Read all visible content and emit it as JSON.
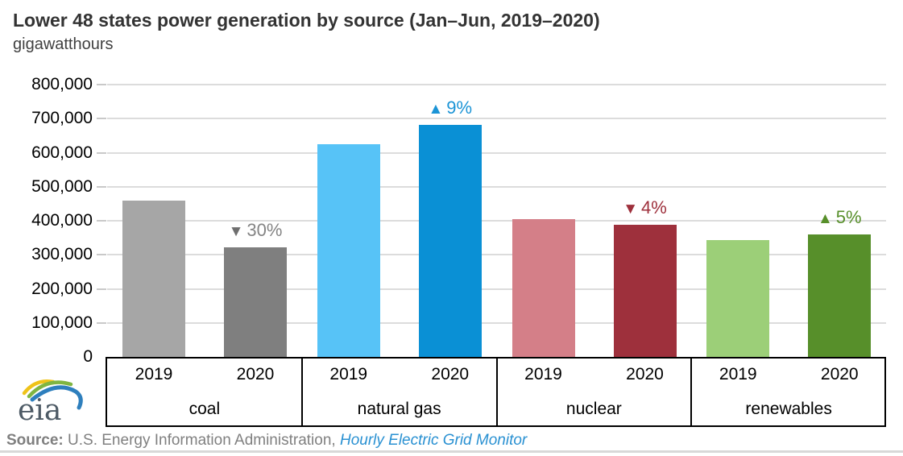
{
  "title": "Lower 48 states power generation by source (Jan–Jun, 2019–2020)",
  "subtitle": "gigawatthours",
  "logo_text": "eia",
  "source": {
    "label": "Source:",
    "text": " U.S. Energy Information Administration, ",
    "link": "Hourly Electric Grid Monitor"
  },
  "colors": {
    "title_text": "#333333",
    "gridline": "#dcdcdc",
    "axis_box": "#000000",
    "source_text": "#808080",
    "source_link": "#2a91d2",
    "logo_text": "#4e5b66",
    "logo_yellow": "#efc319",
    "logo_green": "#7fb541",
    "logo_blue": "#2e7fbd"
  },
  "chart_data": {
    "type": "bar",
    "title": "Lower 48 states power generation by source (Jan–Jun, 2019–2020)",
    "ylabel": "gigawatthours",
    "xlabel": "",
    "ylim": [
      0,
      800000
    ],
    "ytick_interval": 100000,
    "ytick_labels": [
      "0",
      "100,000",
      "200,000",
      "300,000",
      "400,000",
      "500,000",
      "600,000",
      "700,000",
      "800,000"
    ],
    "grid": true,
    "legend": "none",
    "categories": [
      "coal",
      "natural gas",
      "nuclear",
      "renewables"
    ],
    "series": [
      {
        "name": "2019",
        "values": [
          460000,
          626000,
          404000,
          343000
        ],
        "colors": [
          "#a6a6a6",
          "#57c3f7",
          "#d47f88",
          "#9ccf78"
        ]
      },
      {
        "name": "2020",
        "values": [
          322000,
          682000,
          388000,
          360000
        ],
        "colors": [
          "#7f7f7f",
          "#0a90d5",
          "#9e303c",
          "#578f2a"
        ]
      }
    ],
    "annotations": [
      {
        "category_index": 0,
        "category": "coal",
        "series": "2020",
        "direction": "down",
        "glyph": "▼",
        "label": "30%",
        "color": "#848484",
        "triangle_color": "#6e6e6e"
      },
      {
        "category_index": 1,
        "category": "natural gas",
        "series": "2020",
        "direction": "up",
        "glyph": "▲",
        "label": "9%",
        "color": "#1b94d6",
        "triangle_color": "#1b94d6"
      },
      {
        "category_index": 2,
        "category": "nuclear",
        "series": "2020",
        "direction": "down",
        "glyph": "▼",
        "label": "4%",
        "color": "#9e303c",
        "triangle_color": "#9e303c"
      },
      {
        "category_index": 3,
        "category": "renewables",
        "series": "2020",
        "direction": "up",
        "glyph": "▲",
        "label": "5%",
        "color": "#578f2a",
        "triangle_color": "#578f2a"
      }
    ]
  }
}
